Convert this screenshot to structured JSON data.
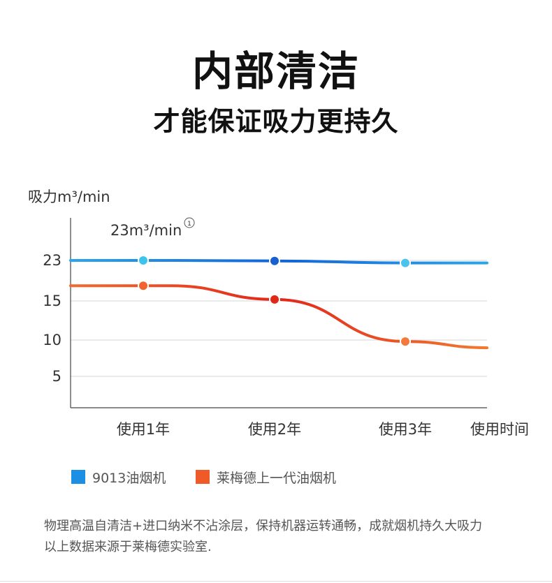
{
  "header": {
    "title": "内部清洁",
    "subtitle": "才能保证吸力更持久"
  },
  "chart_data": {
    "type": "line",
    "ylabel": "吸力m³/min",
    "xlabel": "使用时间",
    "categories": [
      "使用1年",
      "使用2年",
      "使用3年"
    ],
    "yticks": [
      23,
      15,
      10,
      5
    ],
    "annotation": "23m³/min",
    "annotation_mark": "①",
    "grid": true,
    "legend_position": "bottom-left",
    "series": [
      {
        "name": "9013油烟机",
        "values": [
          23,
          22.9,
          22.5
        ],
        "color": "#1a8fe3",
        "marker_colors": [
          "#3cc3ee",
          "#1a5fd0",
          "#4cc2ee"
        ]
      },
      {
        "name": "莱梅德上一代油烟机",
        "values": [
          18,
          15.3,
          9.8
        ],
        "color": "#f26a2e",
        "marker_colors": [
          "#f2612e",
          "#e02818",
          "#f27a3c"
        ]
      }
    ]
  },
  "footer": {
    "note1": "物理高温自清洁+进口纳米不沾涂层，保持机器运转通畅，成就烟机持久大吸力",
    "note2": "以上数据来源于莱梅德实验室."
  }
}
